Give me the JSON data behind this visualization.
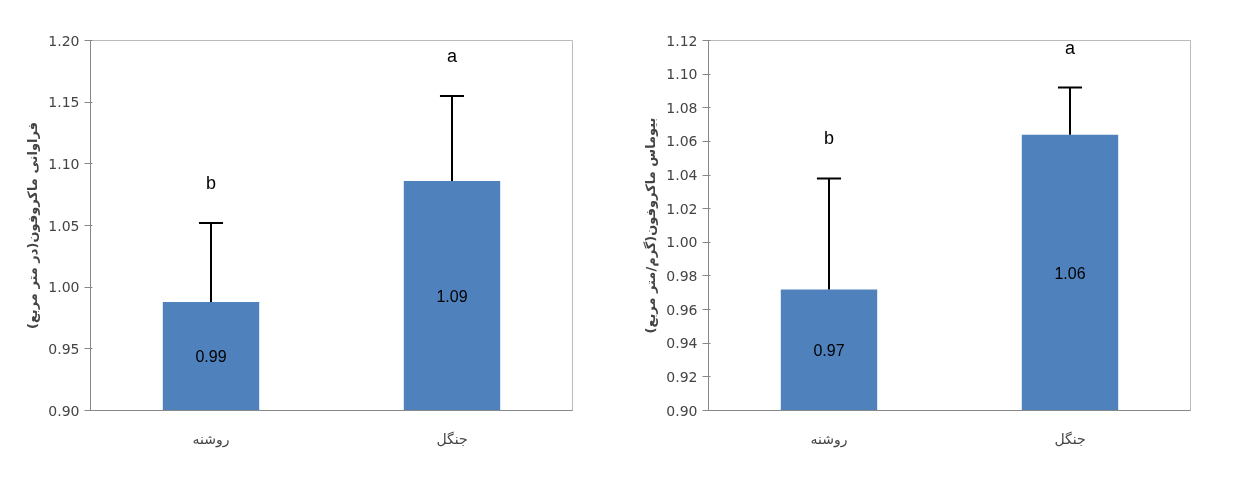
{
  "chart_data": [
    {
      "type": "bar",
      "ylabel": "فراوانی ماکروفون(در متر مربع)",
      "categories": [
        "روشنه",
        "جنگل"
      ],
      "values": [
        0.988,
        1.086
      ],
      "color": "#4f81bd",
      "errors": [
        [
          0.988,
          1.052
        ],
        [
          1.086,
          1.155
        ]
      ],
      "value_labels": [
        "0.99",
        "1.09"
      ],
      "annotations": [
        "b",
        "a"
      ],
      "ylim": [
        0.9,
        1.2
      ],
      "yticks": [
        {
          "value": 0.9,
          "label": "0.90"
        },
        {
          "value": 0.95,
          "label": "0.95"
        },
        {
          "value": 1.0,
          "label": "1.00"
        },
        {
          "value": 1.05,
          "label": "1.05"
        },
        {
          "value": 1.1,
          "label": "1.10"
        },
        {
          "value": 1.15,
          "label": "1.15"
        },
        {
          "value": 1.2,
          "label": "1.20"
        }
      ],
      "grid": false,
      "legend": false
    },
    {
      "type": "bar",
      "ylabel": "بیوماس ماکروفون(گرم/متر مربع)",
      "categories": [
        "روشنه",
        "جنگل"
      ],
      "values": [
        0.972,
        1.064
      ],
      "color": "#4f81bd",
      "errors": [
        [
          0.972,
          1.038
        ],
        [
          1.064,
          1.092
        ]
      ],
      "value_labels": [
        "0.97",
        "1.06"
      ],
      "annotations": [
        "b",
        "a"
      ],
      "ylim": [
        0.9,
        1.12
      ],
      "yticks": [
        {
          "value": 0.9,
          "label": "0.90"
        },
        {
          "value": 0.92,
          "label": "0.92"
        },
        {
          "value": 0.94,
          "label": "0.94"
        },
        {
          "value": 0.96,
          "label": "0.96"
        },
        {
          "value": 0.98,
          "label": "0.98"
        },
        {
          "value": 1.0,
          "label": "1.00"
        },
        {
          "value": 1.02,
          "label": "1.02"
        },
        {
          "value": 1.04,
          "label": "1.04"
        },
        {
          "value": 1.06,
          "label": "1.06"
        },
        {
          "value": 1.08,
          "label": "1.08"
        },
        {
          "value": 1.1,
          "label": "1.10"
        },
        {
          "value": 1.12,
          "label": "1.12"
        }
      ],
      "grid": false,
      "legend": false
    }
  ]
}
